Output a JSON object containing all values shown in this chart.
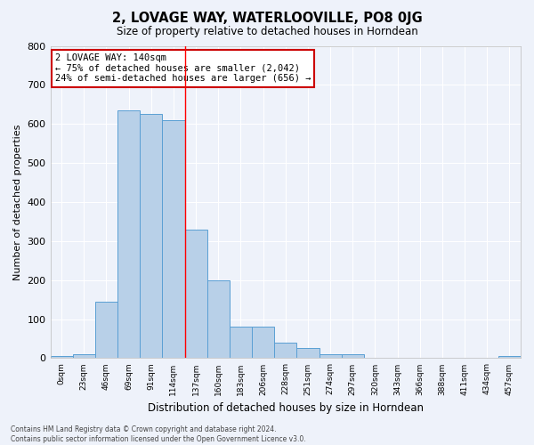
{
  "title": "2, LOVAGE WAY, WATERLOOVILLE, PO8 0JG",
  "subtitle": "Size of property relative to detached houses in Horndean",
  "xlabel": "Distribution of detached houses by size in Horndean",
  "ylabel": "Number of detached properties",
  "bar_values": [
    5,
    10,
    145,
    635,
    625,
    610,
    330,
    200,
    80,
    80,
    40,
    25,
    10,
    10,
    0,
    0,
    0,
    0,
    0,
    0,
    5
  ],
  "bin_labels": [
    "0sqm",
    "23sqm",
    "46sqm",
    "69sqm",
    "91sqm",
    "114sqm",
    "137sqm",
    "160sqm",
    "183sqm",
    "206sqm",
    "228sqm",
    "251sqm",
    "274sqm",
    "297sqm",
    "320sqm",
    "343sqm",
    "366sqm",
    "388sqm",
    "411sqm",
    "434sqm",
    "457sqm"
  ],
  "bar_color": "#b8d0e8",
  "bar_edge_color": "#5a9fd4",
  "background_color": "#eef2fa",
  "grid_color": "#ffffff",
  "ylim": [
    0,
    800
  ],
  "yticks": [
    0,
    100,
    200,
    300,
    400,
    500,
    600,
    700,
    800
  ],
  "red_line_bin_index": 6,
  "annotation_text": "2 LOVAGE WAY: 140sqm\n← 75% of detached houses are smaller (2,042)\n24% of semi-detached houses are larger (656) →",
  "footer_text": "Contains HM Land Registry data © Crown copyright and database right 2024.\nContains public sector information licensed under the Open Government Licence v3.0.",
  "annotation_box_color": "#ffffff",
  "annotation_box_edge": "#cc0000"
}
